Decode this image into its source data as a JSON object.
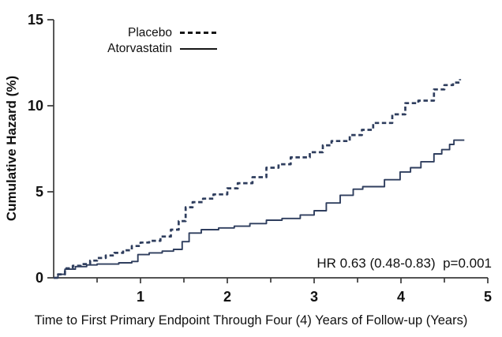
{
  "chart_data": {
    "type": "line",
    "subtype": "step-cumulative-hazard",
    "title": "",
    "xlabel": "Time to First Primary Endpoint Through Four (4) Years of Follow-up (Years)",
    "ylabel": "Cumulative Hazard (%)",
    "xlim": [
      0,
      5
    ],
    "ylim": [
      0,
      15
    ],
    "x_major_ticks": [
      1,
      2,
      3,
      4,
      5
    ],
    "x_minor_ticks": [
      0.5,
      1.5,
      2.5,
      3.5,
      4.5
    ],
    "y_ticks": [
      0,
      5,
      10,
      15
    ],
    "grid": false,
    "legend_position": "top-left-inside",
    "annotation": "HR 0.63 (0.48-0.83)  p=0.001",
    "curve_color": "#2f3e5e",
    "axis_color": "#3b3b3b",
    "series": [
      {
        "name": "Placebo",
        "line": "dashed",
        "x": [
          0,
          0.05,
          0.13,
          0.22,
          0.31,
          0.42,
          0.5,
          0.6,
          0.7,
          0.8,
          0.9,
          1.0,
          1.1,
          1.23,
          1.35,
          1.44,
          1.52,
          1.6,
          1.72,
          1.84,
          2.0,
          2.12,
          2.29,
          2.45,
          2.59,
          2.73,
          2.95,
          3.1,
          3.2,
          3.41,
          3.55,
          3.68,
          3.9,
          4.05,
          4.2,
          4.38,
          4.5,
          4.6,
          4.68
        ],
        "y": [
          0,
          0.2,
          0.55,
          0.7,
          0.8,
          1.0,
          1.15,
          1.3,
          1.45,
          1.6,
          1.85,
          2.05,
          2.15,
          2.4,
          2.8,
          3.3,
          4.1,
          4.4,
          4.6,
          4.85,
          5.2,
          5.5,
          5.85,
          6.4,
          6.6,
          7.0,
          7.3,
          7.7,
          7.95,
          8.3,
          8.6,
          9.0,
          9.5,
          10.15,
          10.3,
          10.95,
          11.2,
          11.35,
          11.55
        ]
      },
      {
        "name": "Atorvastatin",
        "line": "solid",
        "x": [
          0,
          0.05,
          0.13,
          0.25,
          0.38,
          0.5,
          0.75,
          0.9,
          0.97,
          1.1,
          1.25,
          1.38,
          1.48,
          1.56,
          1.7,
          1.9,
          2.08,
          2.26,
          2.45,
          2.63,
          2.84,
          3.0,
          3.14,
          3.3,
          3.45,
          3.56,
          3.81,
          3.99,
          4.11,
          4.23,
          4.38,
          4.47,
          4.56,
          4.61,
          4.73
        ],
        "y": [
          0,
          0.2,
          0.5,
          0.65,
          0.75,
          0.8,
          0.87,
          0.95,
          1.35,
          1.45,
          1.55,
          1.65,
          2.1,
          2.6,
          2.8,
          2.9,
          3.0,
          3.15,
          3.35,
          3.45,
          3.65,
          3.9,
          4.35,
          4.8,
          5.15,
          5.3,
          5.7,
          6.15,
          6.4,
          6.75,
          7.2,
          7.45,
          7.75,
          8.0,
          8.0
        ]
      }
    ]
  }
}
